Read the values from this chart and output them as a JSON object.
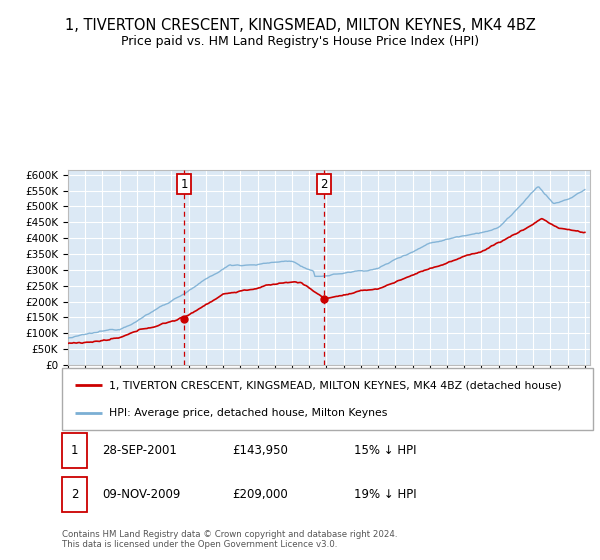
{
  "title1": "1, TIVERTON CRESCENT, KINGSMEAD, MILTON KEYNES, MK4 4BZ",
  "title2": "Price paid vs. HM Land Registry's House Price Index (HPI)",
  "y_ticks": [
    0,
    50000,
    100000,
    150000,
    200000,
    250000,
    300000,
    350000,
    400000,
    450000,
    500000,
    550000,
    600000
  ],
  "y_tick_labels": [
    "£0",
    "£50K",
    "£100K",
    "£150K",
    "£200K",
    "£250K",
    "£300K",
    "£350K",
    "£400K",
    "£450K",
    "£500K",
    "£550K",
    "£600K"
  ],
  "sale1_date": "28-SEP-2001",
  "sale1_year": 2001.75,
  "sale1_price": 143950,
  "sale1_label": "15% ↓ HPI",
  "sale2_date": "09-NOV-2009",
  "sale2_year": 2009.85,
  "sale2_price": 209000,
  "sale2_label": "19% ↓ HPI",
  "legend_red": "1, TIVERTON CRESCENT, KINGSMEAD, MILTON KEYNES, MK4 4BZ (detached house)",
  "legend_blue": "HPI: Average price, detached house, Milton Keynes",
  "footnote": "Contains HM Land Registry data © Crown copyright and database right 2024.\nThis data is licensed under the Open Government Licence v3.0.",
  "red_color": "#cc0000",
  "blue_color": "#7bafd4",
  "bg_color": "#dce9f5",
  "grid_color": "#ffffff",
  "vline_color": "#cc0000",
  "title_fontsize": 10.5,
  "subtitle_fontsize": 9.5
}
